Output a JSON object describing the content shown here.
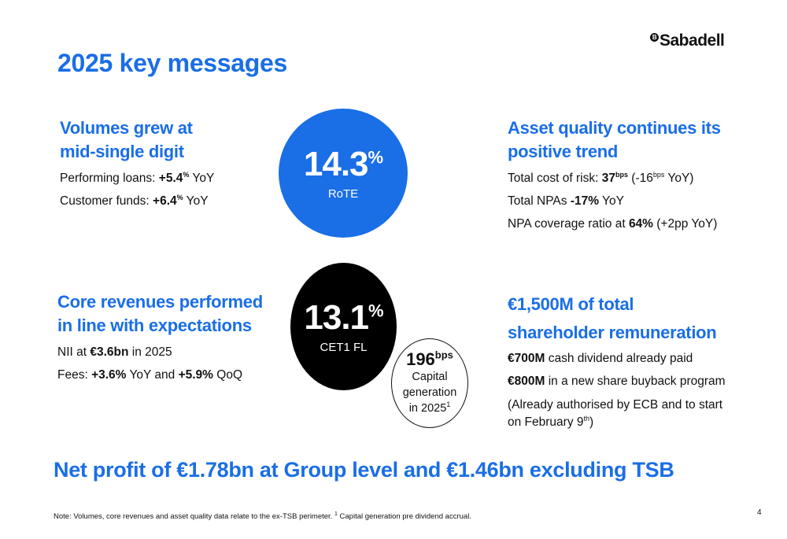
{
  "brand": {
    "logo_mark": "B",
    "logo_text": "Sabadell"
  },
  "title": "2025 key messages",
  "volumes": {
    "heading_l1": "Volumes grew at",
    "heading_l2": "mid-single digit",
    "loans_label": "Performing loans: ",
    "loans_value": "+5.4",
    "loans_sup": "%",
    "loans_suffix": " YoY",
    "funds_label": "Customer funds: ",
    "funds_value": "+6.4",
    "funds_sup": "%",
    "funds_suffix": " YoY"
  },
  "rote": {
    "value": "14.3",
    "unit": "%",
    "label": "RoTE",
    "color": "#1a6ee6"
  },
  "asset_quality": {
    "heading_l1": "Asset quality continues its",
    "heading_l2": "positive trend",
    "cor_label": "Total cost of risk: ",
    "cor_value": "37",
    "cor_unit": "bps",
    "cor_change_pre": " (-16",
    "cor_change_unit": "bps",
    "cor_change_post": " YoY)",
    "npa_label": "Total NPAs ",
    "npa_value": "-17%",
    "npa_suffix": " YoY",
    "coverage_label": "NPA coverage ratio at ",
    "coverage_value": "64%",
    "coverage_suffix": " (+2pp YoY)"
  },
  "core_revenues": {
    "heading_l1": "Core revenues performed",
    "heading_l2": "in line with expectations",
    "nii_label": "NII at ",
    "nii_value": "€3.6bn",
    "nii_suffix": " in 2025",
    "fees_label": "Fees: ",
    "fees_yoy": "+3.6%",
    "fees_mid": " YoY and ",
    "fees_qoq": "+5.9%",
    "fees_suffix": " QoQ"
  },
  "cet1": {
    "value": "13.1",
    "unit": "%",
    "label": "CET1 FL",
    "color": "#000000"
  },
  "capital_generation": {
    "value": "196",
    "unit": "bps",
    "line1": "Capital",
    "line2": "generation",
    "line3": "in 2025",
    "footnote_ref": "1"
  },
  "remuneration": {
    "heading_l1": "€1,500M of total",
    "heading_l2": "shareholder remuneration",
    "cash_value": "€700M",
    "cash_suffix": " cash dividend already paid",
    "buyback_value": "€800M",
    "buyback_suffix": " in a new share buyback program",
    "note_l1": "(Already authorised by ECB and to start",
    "note_l2_pre": "on February 9",
    "note_l2_sup": "th",
    "note_l2_post": ")"
  },
  "banner": "Net profit of €1.78bn at Group level and €1.46bn excluding TSB",
  "footnote": {
    "prefix": "Note: Volumes, core revenues and asset quality data relate to the ex-TSB perimeter. ",
    "ref": "1",
    "text": " Capital generation pre dividend accrual."
  },
  "page_number": "4",
  "colors": {
    "accent": "#1a6ee6",
    "text": "#111111"
  }
}
